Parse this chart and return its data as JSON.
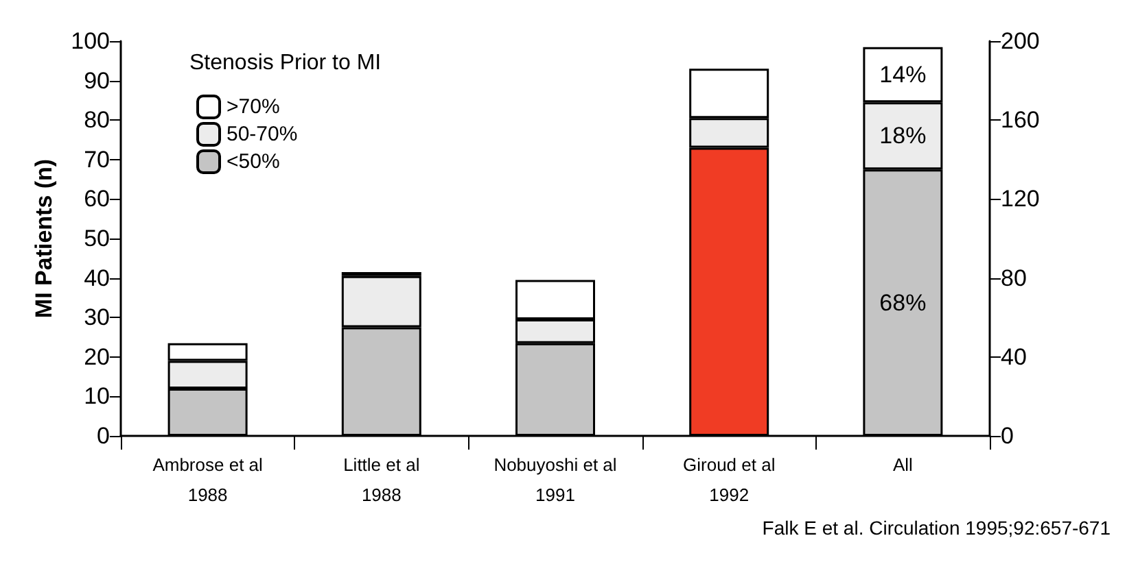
{
  "chart_data": {
    "type": "bar",
    "stacked": true,
    "ylabel": "MI Patients (n)",
    "legend_title": "Stenosis Prior to MI",
    "legend": "top left",
    "grid": false,
    "categories": [
      "Ambrose et al\n1988",
      "Little et al\n1988",
      "Nobuyoshi et al\n1991",
      "Giroud et al\n1992",
      "All"
    ],
    "series": [
      {
        "name": "<50%",
        "color": "#c4c4c4",
        "colors": [
          "#c4c4c4",
          "#c4c4c4",
          "#c4c4c4",
          "#f03c24",
          null
        ],
        "values": [
          12,
          27.5,
          23.5,
          73,
          null
        ]
      },
      {
        "name": "50-70%",
        "color": "#ececec",
        "values": [
          7,
          13,
          6,
          7.5,
          null
        ]
      },
      {
        "name": ">70%",
        "color": "#ffffff",
        "values": [
          4.5,
          1,
          10,
          12.5,
          null
        ]
      },
      {
        "axis": "y2",
        "color": "#c4c4c4",
        "values": [
          null,
          null,
          null,
          null,
          135
        ]
      },
      {
        "axis": "y2",
        "color": "#ececec",
        "values": [
          null,
          null,
          null,
          null,
          34
        ]
      },
      {
        "axis": "y2",
        "color": "#ffffff",
        "values": [
          null,
          null,
          null,
          null,
          28
        ]
      }
    ],
    "ylim": [
      0,
      100
    ],
    "yticks": [
      0,
      10,
      20,
      30,
      40,
      50,
      60,
      70,
      80,
      90,
      100
    ],
    "y2lim": [
      0,
      200
    ],
    "y2ticks": [
      0,
      40,
      80,
      120,
      160,
      200
    ],
    "annotations": [
      "68%",
      "18%",
      "14%",
      "Falk E et al. Circulation 1995;92:657-671"
    ]
  }
}
